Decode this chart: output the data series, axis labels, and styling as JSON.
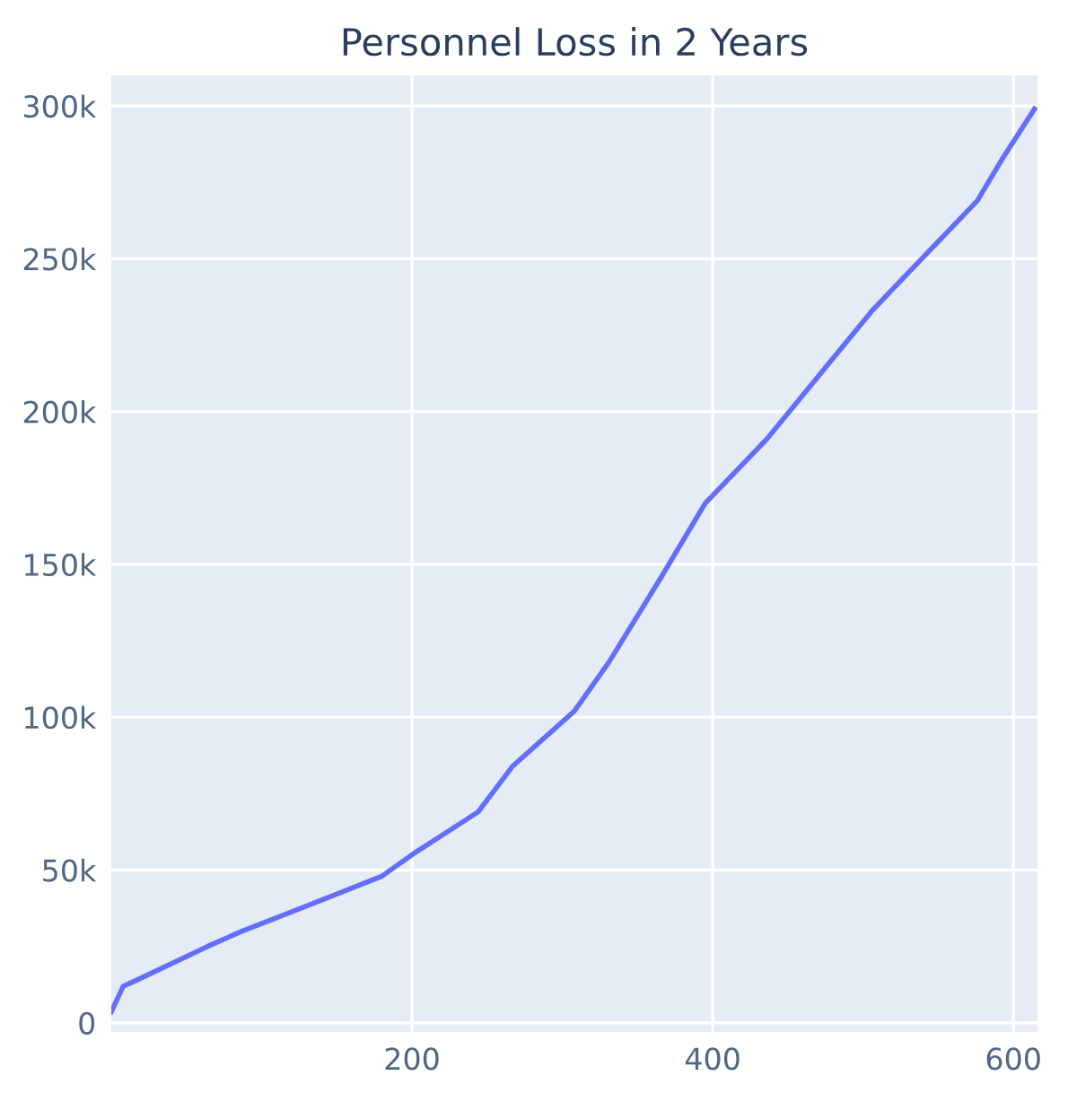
{
  "chart_data": {
    "type": "line",
    "title": "Personnel Loss in 2 Years",
    "x": [
      0,
      8,
      17,
      64,
      87,
      134,
      180,
      203,
      244,
      267,
      308,
      331,
      366,
      395,
      436,
      471,
      506,
      541,
      576,
      593,
      614
    ],
    "series": [
      {
        "color": "#636efa",
        "values": [
          3600,
          12000,
          14000,
          25000,
          30000,
          39000,
          48000,
          56000,
          69000,
          84000,
          102000,
          118000,
          146000,
          170000,
          191000,
          212000,
          233000,
          251000,
          269000,
          283000,
          299000
        ]
      }
    ],
    "xlim": [
      0,
      616
    ],
    "xticks": [
      200,
      400,
      600
    ],
    "ylim": [
      -3000,
      310000
    ],
    "yticks": [
      {
        "value": 0,
        "label": "0"
      },
      {
        "value": 50000,
        "label": "50k"
      },
      {
        "value": 100000,
        "label": "100k"
      },
      {
        "value": 150000,
        "label": "150k"
      },
      {
        "value": 200000,
        "label": "200k"
      },
      {
        "value": 250000,
        "label": "250k"
      },
      {
        "value": 300000,
        "label": "300k"
      }
    ],
    "grid": true,
    "marker": "none",
    "line_style": "solid"
  }
}
